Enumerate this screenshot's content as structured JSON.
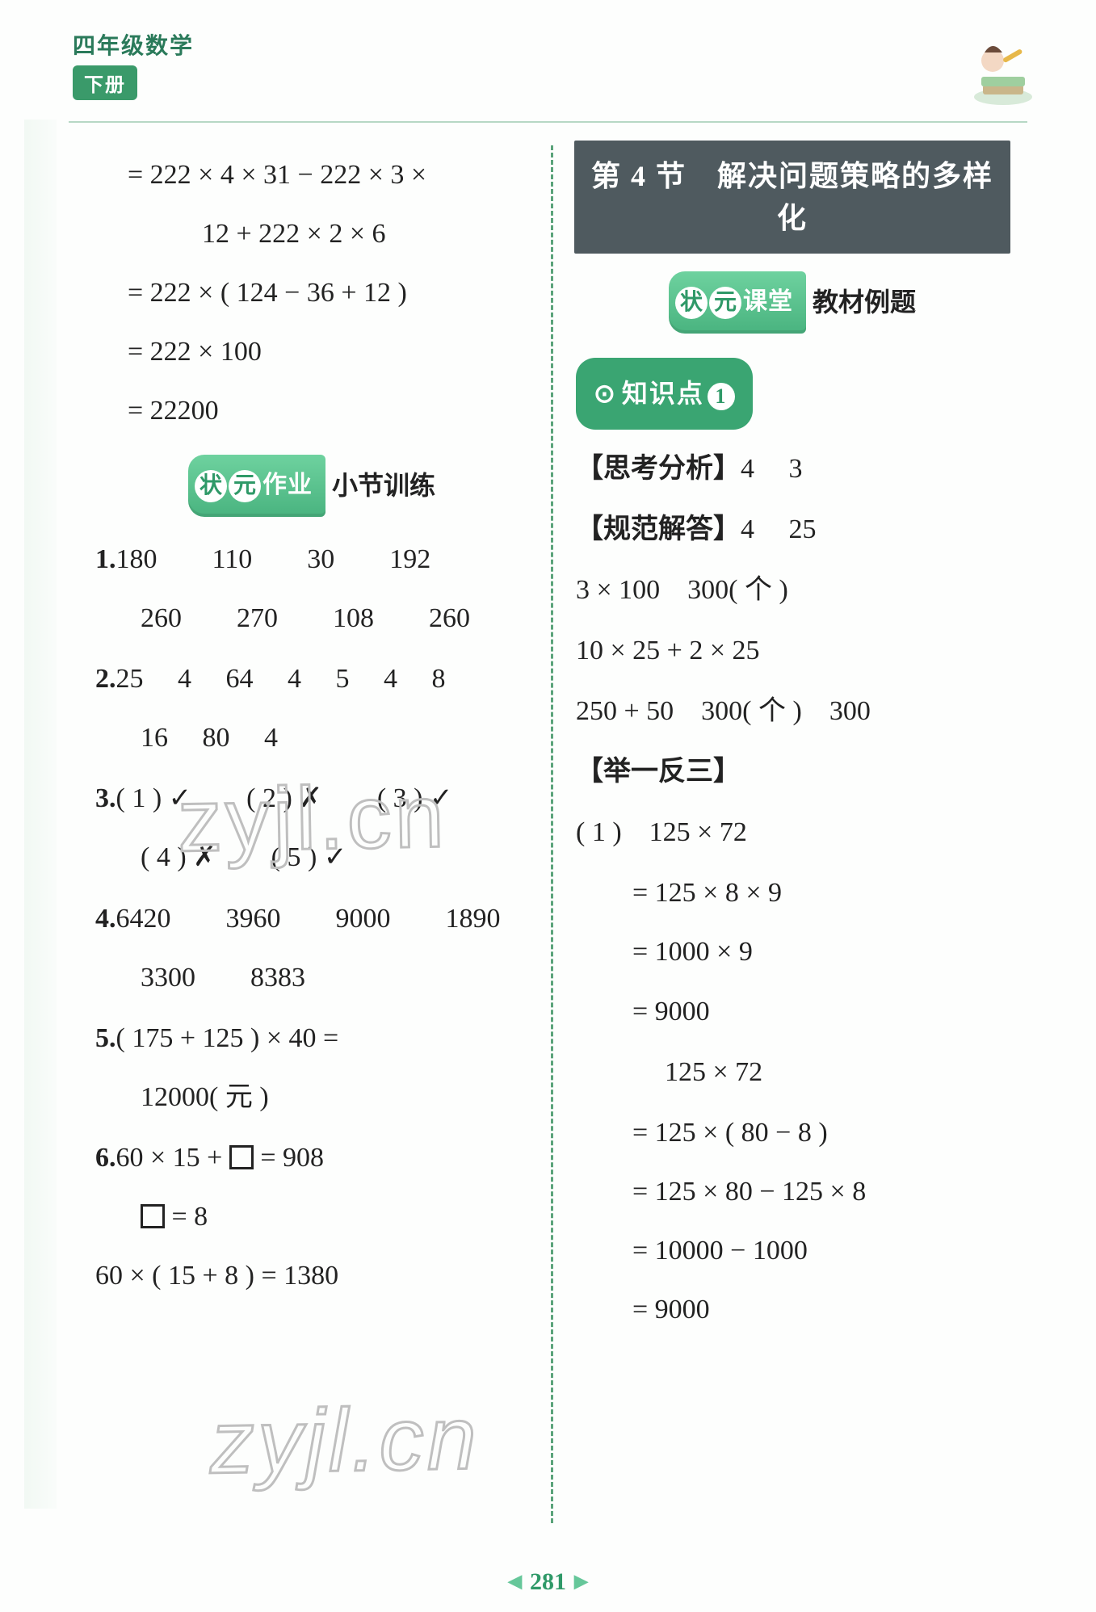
{
  "colors": {
    "green_primary": "#3aa572",
    "green_dark": "#2f9968",
    "banner_bg": "#4f5a5f",
    "text": "#222222",
    "divider": "#5aa37a",
    "page_bg": "#fdfefd"
  },
  "typography": {
    "body_font": "SimSun / STSong",
    "body_size_pt": 26,
    "line_height": 2.15,
    "header_title_size_pt": 21,
    "banner_size_pt": 27
  },
  "header": {
    "title": "四年级数学",
    "subtitle": "下册"
  },
  "left": {
    "equations": [
      "= 222 × 4 × 31 − 222 × 3 ×",
      "12 + 222 × 2 × 6",
      "= 222 × ( 124 − 36 + 12 )",
      "= 222 × 100",
      "= 22200"
    ],
    "badge": {
      "c1": "状",
      "c2": "元",
      "rest": "作业",
      "tail": "小节训练"
    },
    "q1": {
      "num": "1.",
      "row1": [
        "180",
        "110",
        "30",
        "192"
      ],
      "row2": [
        "260",
        "270",
        "108",
        "260"
      ]
    },
    "q2": {
      "num": "2.",
      "row1": [
        "25",
        "4",
        "64",
        "4",
        "5",
        "4",
        "8"
      ],
      "row2": [
        "16",
        "80",
        "4"
      ]
    },
    "q3": {
      "num": "3.",
      "items": [
        {
          "label": "( 1 )",
          "mark": "✓"
        },
        {
          "label": "( 2 )",
          "mark": "✗"
        },
        {
          "label": "( 3 )",
          "mark": "✓"
        },
        {
          "label": "( 4 )",
          "mark": "✗"
        },
        {
          "label": "( 5 )",
          "mark": "✓"
        }
      ]
    },
    "q4": {
      "num": "4.",
      "row1": [
        "6420",
        "3960",
        "9000",
        "1890"
      ],
      "row2": [
        "3300",
        "8383"
      ]
    },
    "q5": {
      "num": "5.",
      "line1": "( 175 + 125 ) × 40 =",
      "line2": "12000( 元 )"
    },
    "q6": {
      "num": "6.",
      "line1_pre": "60 × 15 + ",
      "line1_post": " = 908",
      "line2_pre": "",
      "line2_post": " = 8",
      "line3": "60 × ( 15 + 8 ) = 1380"
    }
  },
  "right": {
    "banner": "第 4 节　解决问题策略的多样化",
    "badge": {
      "c1": "状",
      "c2": "元",
      "rest": "课堂",
      "tail": "教材例题"
    },
    "kp": {
      "arrow": "⊙",
      "text": "知识点",
      "num": "1"
    },
    "thinking_label": "【思考分析】",
    "thinking_vals": [
      "4",
      "3"
    ],
    "standard_label": "【规范解答】",
    "standard_vals": [
      "4",
      "25"
    ],
    "lines": [
      "3 × 100　300( 个 )",
      "10 × 25 + 2 × 25",
      "250 + 50　300( 个 )　300"
    ],
    "analogy_label": "【举一反三】",
    "calc1": {
      "head": "( 1 )　125 × 72",
      "steps": [
        "= 125 × 8 × 9",
        "= 1000 × 9",
        "= 9000"
      ]
    },
    "calc2": {
      "head": "125 × 72",
      "steps": [
        "= 125 × ( 80 − 8 )",
        "= 125 × 80 − 125 × 8",
        "= 10000 − 1000",
        "= 9000"
      ]
    }
  },
  "watermarks": [
    "zyjl.cn",
    "zyjl.cn"
  ],
  "page_number": "281"
}
